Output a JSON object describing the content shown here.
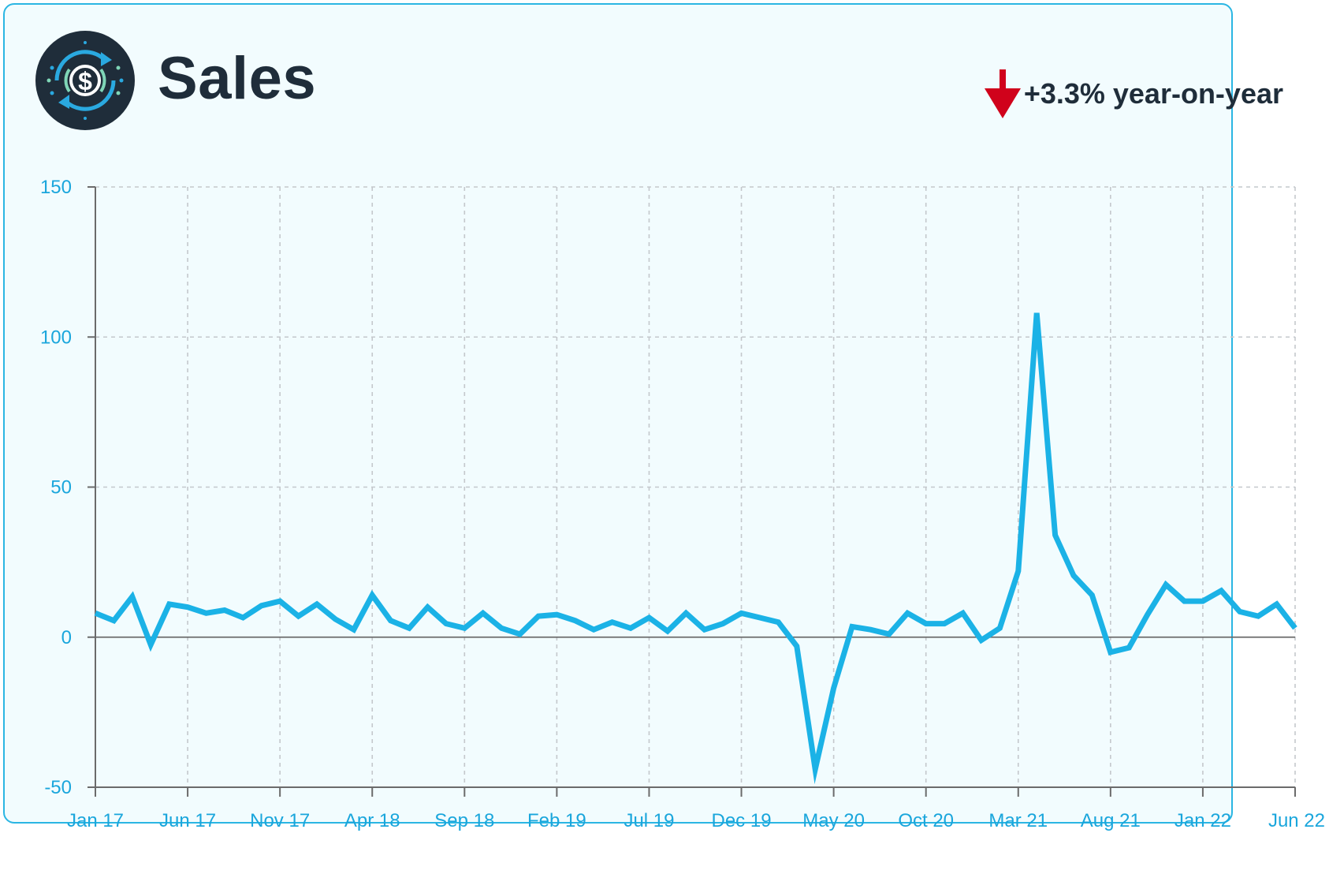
{
  "header": {
    "title": "Sales",
    "yoy_text": "+3.3% year-on-year",
    "trend_icon": "arrow-down-icon",
    "logo_icon": "dollar-cycle-icon"
  },
  "colors": {
    "line": "#1bb2e6",
    "tick_label": "#1aa6dc",
    "grid": "#c4c8cc",
    "axis": "#6b6b6b",
    "arrow": "#d0021b",
    "card_bg": "#f2fcfe",
    "card_border": "#2bb6e3",
    "logo_bg": "#1f2d3a"
  },
  "chart_data": {
    "type": "line",
    "title": "",
    "xlabel": "",
    "ylabel": "",
    "ylim": [
      -50,
      150
    ],
    "yticks": [
      -50,
      0,
      50,
      100,
      150
    ],
    "x_tick_labels": [
      "Jan 17",
      "Jun 17",
      "Nov 17",
      "Apr 18",
      "Sep 18",
      "Feb 19",
      "Jul 19",
      "Dec 19",
      "May 20",
      "Oct 20",
      "Mar 21",
      "Aug 21",
      "Jan 22",
      "Jun 22"
    ],
    "grid": true,
    "x": [
      "2017-01",
      "2017-02",
      "2017-03",
      "2017-04",
      "2017-05",
      "2017-06",
      "2017-07",
      "2017-08",
      "2017-09",
      "2017-10",
      "2017-11",
      "2017-12",
      "2018-01",
      "2018-02",
      "2018-03",
      "2018-04",
      "2018-05",
      "2018-06",
      "2018-07",
      "2018-08",
      "2018-09",
      "2018-10",
      "2018-11",
      "2018-12",
      "2019-01",
      "2019-02",
      "2019-03",
      "2019-04",
      "2019-05",
      "2019-06",
      "2019-07",
      "2019-08",
      "2019-09",
      "2019-10",
      "2019-11",
      "2019-12",
      "2020-01",
      "2020-02",
      "2020-03",
      "2020-04",
      "2020-05",
      "2020-06",
      "2020-07",
      "2020-08",
      "2020-09",
      "2020-10",
      "2020-11",
      "2020-12",
      "2021-01",
      "2021-02",
      "2021-03",
      "2021-04",
      "2021-05",
      "2021-06",
      "2021-07",
      "2021-08",
      "2021-09",
      "2021-10",
      "2021-11",
      "2021-12",
      "2022-01",
      "2022-02",
      "2022-03",
      "2022-04",
      "2022-05",
      "2022-06"
    ],
    "series": [
      {
        "values": [
          8,
          5.5,
          13.5,
          -2.5,
          11,
          10,
          8,
          9,
          6.5,
          10.5,
          12,
          7,
          11,
          6,
          2.5,
          14,
          5.5,
          3,
          10,
          4.5,
          3,
          8,
          3,
          1,
          7,
          7.5,
          5.5,
          2.5,
          5,
          3,
          6.5,
          2,
          8,
          2.5,
          4.5,
          8,
          6.5,
          5,
          -3,
          -44,
          -17,
          3.5,
          2.5,
          1,
          8,
          4.5,
          4.5,
          8,
          -1,
          3,
          22,
          108,
          34,
          20.5,
          14,
          -5,
          -3.5,
          7.5,
          17.5,
          12,
          12,
          15.5,
          8.5,
          7,
          11,
          3
        ]
      }
    ]
  }
}
